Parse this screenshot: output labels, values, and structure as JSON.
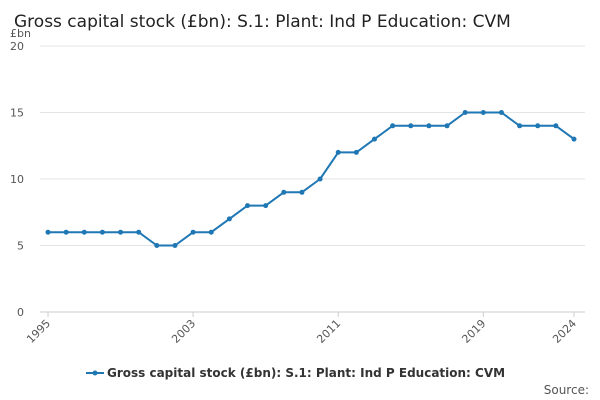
{
  "chart_data": {
    "type": "line",
    "title": "Gross capital stock (£bn): S.1: Plant: Ind P Education: CVM",
    "ylabel": "£bn",
    "xlabel": "",
    "x": [
      1995,
      1996,
      1997,
      1998,
      1999,
      2000,
      2001,
      2002,
      2003,
      2004,
      2005,
      2006,
      2007,
      2008,
      2009,
      2010,
      2011,
      2012,
      2013,
      2014,
      2015,
      2016,
      2017,
      2018,
      2019,
      2020,
      2021,
      2022,
      2023,
      2024
    ],
    "x_tick_labels": [
      "1995",
      "2003",
      "2011",
      "2019",
      "2024"
    ],
    "x_tick_values": [
      1995,
      2003,
      2011,
      2019,
      2024
    ],
    "y_ticks": [
      0,
      5,
      10,
      15,
      20
    ],
    "y_tick_labels": [
      "0",
      "5",
      "10",
      "15",
      "20"
    ],
    "ylim": [
      0,
      20
    ],
    "grid": true,
    "legend_position": "bottom",
    "series": [
      {
        "name": "Gross capital stock (£bn): S.1: Plant: Ind P Education: CVM",
        "color": "#1f77b4",
        "values": [
          6,
          6,
          6,
          6,
          6,
          6,
          5,
          5,
          6,
          6,
          7,
          8,
          8,
          9,
          9,
          10,
          12,
          12,
          13,
          14,
          14,
          14,
          14,
          15,
          15,
          15,
          14,
          14,
          14,
          13
        ]
      }
    ]
  },
  "footer": {
    "source_label": "Source:"
  }
}
